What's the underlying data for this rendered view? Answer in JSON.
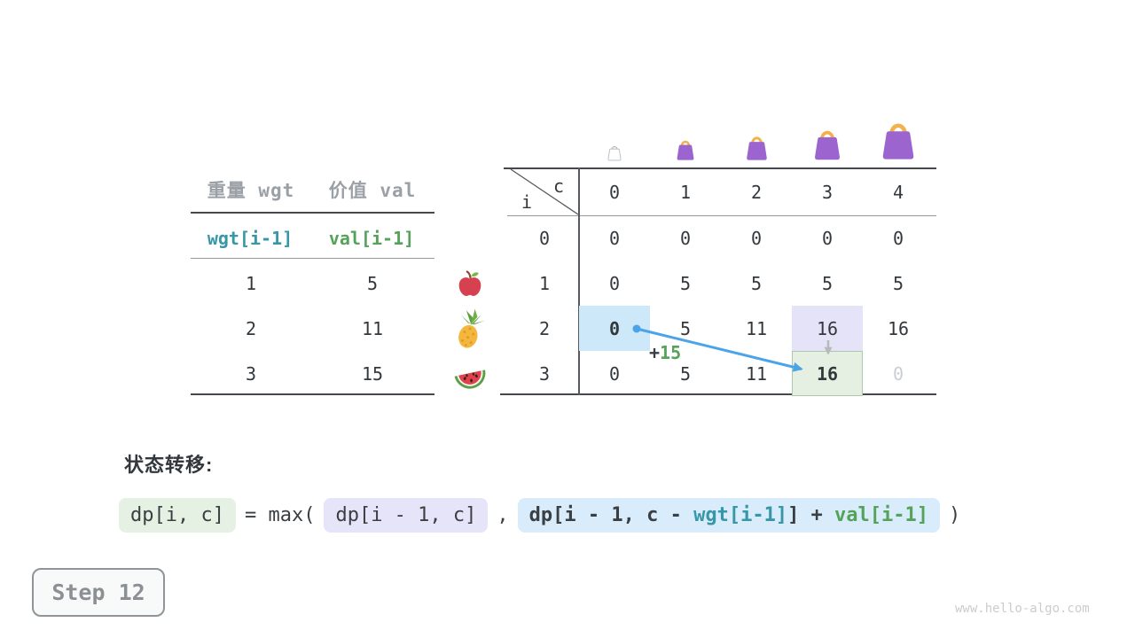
{
  "items_table": {
    "headers": [
      "重量 wgt",
      "价值 val"
    ],
    "formula_row": [
      "wgt[i-1]",
      "val[i-1]"
    ],
    "rows": [
      {
        "weight": "1",
        "value": "5"
      },
      {
        "weight": "2",
        "value": "11"
      },
      {
        "weight": "3",
        "value": "15"
      }
    ],
    "row_icons": [
      "apple-icon",
      "pineapple-icon",
      "watermelon-icon"
    ]
  },
  "dp_table": {
    "corner_top": "c",
    "corner_bottom": "i",
    "col_headers": [
      "0",
      "1",
      "2",
      "3",
      "4"
    ],
    "row_headers": [
      "0",
      "1",
      "2",
      "3"
    ],
    "cells": [
      [
        "0",
        "0",
        "0",
        "0",
        "0"
      ],
      [
        "0",
        "5",
        "5",
        "5",
        "5"
      ],
      [
        "0",
        "5",
        "11",
        "16",
        "16"
      ],
      [
        "0",
        "5",
        "11",
        "16",
        "0"
      ]
    ],
    "cell_styles": [
      {
        "row": 2,
        "col": 0,
        "classes": "hl-blue bold"
      },
      {
        "row": 2,
        "col": 3,
        "classes": "hl-lavender"
      },
      {
        "row": 3,
        "col": 3,
        "classes": "hl-green bold"
      },
      {
        "row": 3,
        "col": 4,
        "classes": "dim"
      }
    ],
    "bags": [
      {
        "name": "bag-icon-capacity-0",
        "variant": "empty"
      },
      {
        "name": "bag-icon-capacity-1",
        "variant": "filled"
      },
      {
        "name": "bag-icon-capacity-2",
        "variant": "filled"
      },
      {
        "name": "bag-icon-capacity-3",
        "variant": "filled"
      },
      {
        "name": "bag-icon-capacity-4",
        "variant": "filled"
      }
    ]
  },
  "annotations": {
    "plus_prefix": "+",
    "plus_value": "15",
    "transfer_arrow": {
      "from_cell": "i=2,c=0",
      "to_cell": "i=3,c=3",
      "label": "+15"
    },
    "carry_arrow": {
      "from_cell": "i=2,c=3",
      "to_cell": "i=3,c=3"
    }
  },
  "transition": {
    "label": "状态转移:",
    "tokens": [
      {
        "box": "green",
        "bold": false,
        "segments": [
          {
            "t": "dp[i, c]",
            "c": "dark"
          }
        ]
      },
      {
        "box": "none",
        "bold": false,
        "segments": [
          {
            "t": "= max(",
            "c": "dark"
          }
        ]
      },
      {
        "box": "lavender",
        "bold": false,
        "segments": [
          {
            "t": "dp[i - 1, c]",
            "c": "dark"
          }
        ]
      },
      {
        "box": "none",
        "bold": false,
        "segments": [
          {
            "t": ",",
            "c": "dark"
          }
        ]
      },
      {
        "box": "blue",
        "bold": true,
        "segments": [
          {
            "t": "dp[i - 1, c - ",
            "c": "dark"
          },
          {
            "t": "wgt[i-1]",
            "c": "teal"
          },
          {
            "t": "] + ",
            "c": "dark"
          },
          {
            "t": "val[i-1]",
            "c": "green"
          }
        ]
      },
      {
        "box": "none",
        "bold": false,
        "segments": [
          {
            "t": ")",
            "c": "dark"
          }
        ]
      }
    ]
  },
  "step_badge": "Step 12",
  "watermark": "www.hello-algo.com",
  "colors": {
    "teal": "#3897a6",
    "green": "#55a259",
    "arrow_blue": "#4ba3e8",
    "arrow_gray": "#b6babd",
    "highlight_blue": "#cde8f8",
    "highlight_lavender": "#e4e3f7",
    "highlight_green": "#e5efe2",
    "bag_purple": "#9b64cf",
    "bag_handle": "#f2b14c",
    "header_gray": "#9aa0a5"
  }
}
